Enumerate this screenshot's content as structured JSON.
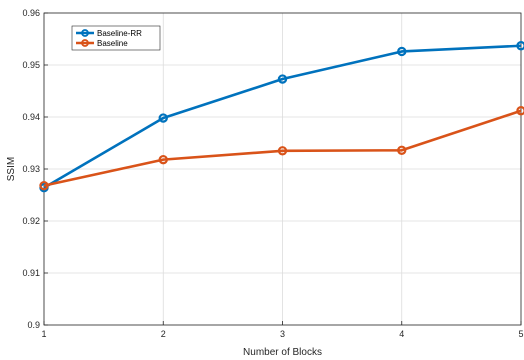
{
  "chart_data": {
    "type": "line",
    "title": "",
    "xlabel": "Number of Blocks",
    "ylabel": "SSIM",
    "x": [
      1,
      2,
      3,
      4,
      5
    ],
    "xticks": [
      "1",
      "2",
      "3",
      "4",
      "5"
    ],
    "yticks": [
      "0.9",
      "0.91",
      "0.92",
      "0.93",
      "0.94",
      "0.95",
      "0.96"
    ],
    "xlim": [
      1,
      5
    ],
    "ylim": [
      0.9,
      0.96
    ],
    "grid": true,
    "legend_position": "top-left",
    "series": [
      {
        "name": "Baseline-RR",
        "color": "#0072BD",
        "marker": "circle",
        "values": [
          0.9264,
          0.9398,
          0.9473,
          0.9526,
          0.9537
        ]
      },
      {
        "name": "Baseline",
        "color": "#D95319",
        "marker": "circle",
        "values": [
          0.9268,
          0.9318,
          0.9335,
          0.9336,
          0.9412
        ]
      }
    ]
  }
}
